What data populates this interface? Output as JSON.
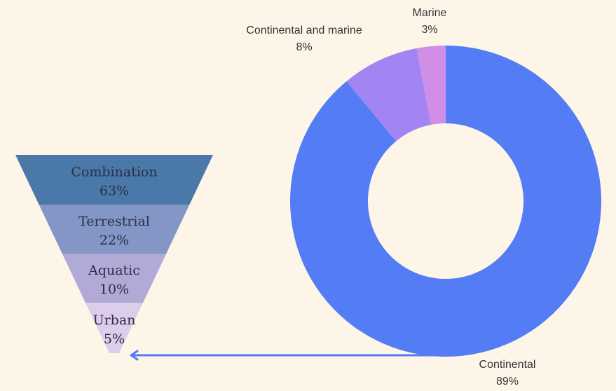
{
  "chart_data": [
    {
      "type": "funnel",
      "categories": [
        "Combination",
        "Terrestrial",
        "Aquatic",
        "Urban"
      ],
      "values": [
        63,
        22,
        10,
        5
      ],
      "value_labels": [
        "63%",
        "22%",
        "10%",
        "5%"
      ],
      "colors": [
        "#4a78a8",
        "#8496c6",
        "#b2aad6",
        "#ddcdea"
      ]
    },
    {
      "type": "pie",
      "donut": true,
      "categories": [
        "Continental",
        "Continental and marine",
        "Marine"
      ],
      "values": [
        89,
        8,
        3
      ],
      "value_labels": [
        "89%",
        "8%",
        "3%"
      ],
      "colors": [
        "#547cf5",
        "#a384f3",
        "#d08ee6"
      ],
      "connector_color": "#547cf5"
    }
  ]
}
